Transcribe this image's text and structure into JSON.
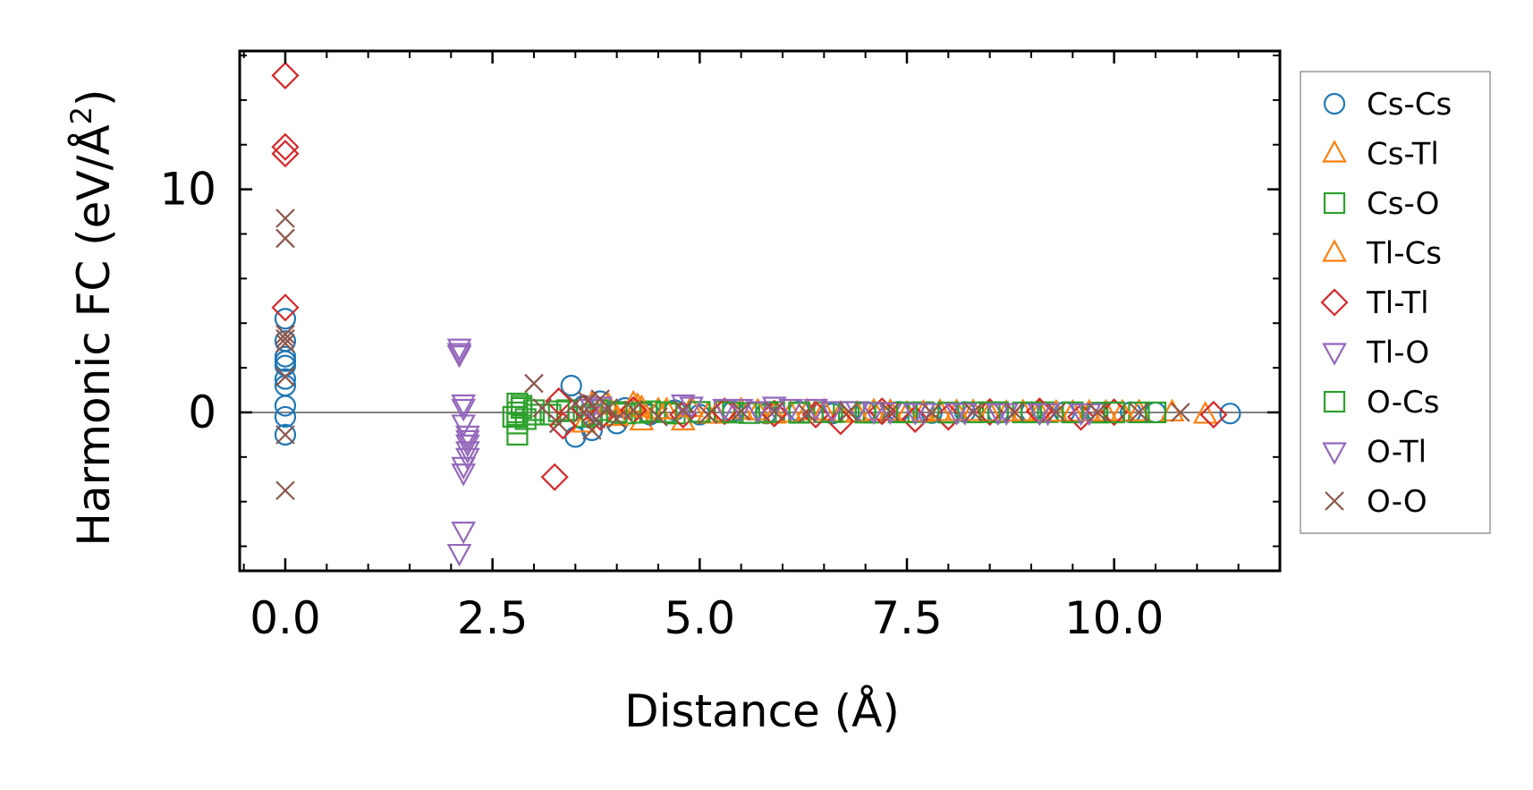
{
  "chart_data": {
    "type": "scatter",
    "title": "",
    "xlabel": "Distance (Å)",
    "ylabel": "Harmonic FC (eV/Å",
    "ylabel_sup": "2",
    "ylabel_tail": ")",
    "xlim": [
      -0.55,
      12.0
    ],
    "ylim": [
      -7.1,
      16.2
    ],
    "x_ticks": [
      0.0,
      2.5,
      5.0,
      7.5,
      10.0
    ],
    "x_tick_labels": [
      "0.0",
      "2.5",
      "5.0",
      "7.5",
      "10.0"
    ],
    "y_ticks": [
      0,
      10
    ],
    "y_tick_labels": [
      "0",
      "10"
    ],
    "x_minor_step": 0.5,
    "y_minor_step": 2,
    "zero_line": true,
    "grid": false,
    "legend_position": "outside-right",
    "series": [
      {
        "name": "Cs-Cs",
        "marker": "circle",
        "color": "#1f77b4",
        "x": [
          0,
          0,
          0,
          0,
          0,
          0,
          0,
          0,
          0,
          0,
          3.45,
          3.5,
          3.6,
          3.7,
          3.8,
          4.0,
          4.1,
          4.4,
          4.7,
          5.0,
          5.4,
          5.8,
          6.2,
          6.6,
          7.0,
          7.4,
          7.8,
          8.2,
          8.6,
          9.0,
          9.4,
          9.8,
          10.2,
          10.5,
          11.4
        ],
        "y": [
          4.2,
          2.5,
          2.3,
          2.1,
          1.5,
          1.2,
          0.3,
          -0.2,
          -1.0,
          3.2,
          1.2,
          -1.1,
          0.3,
          -0.8,
          0.5,
          -0.5,
          0.2,
          -0.1,
          0.1,
          -0.1,
          0.05,
          -0.05,
          0.05,
          -0.05,
          0.02,
          0.03,
          -0.03,
          0.02,
          -0.02,
          0.01,
          0.01,
          0,
          0.01,
          0,
          -0.05
        ]
      },
      {
        "name": "Cs-Tl",
        "marker": "triangle-up",
        "color": "#ff7f0e",
        "x": [
          3.6,
          3.9,
          4.2,
          4.25,
          4.3,
          4.5,
          4.8,
          5.1,
          5.5,
          5.9,
          6.3,
          6.7,
          7.1,
          7.5,
          7.9,
          8.3,
          8.7,
          9.1,
          9.5,
          9.9,
          10.3,
          10.7,
          11.1
        ],
        "y": [
          -0.5,
          0.3,
          0.4,
          0.3,
          -0.4,
          0.1,
          -0.4,
          -0.1,
          0.1,
          -0.1,
          0.05,
          -0.05,
          0.05,
          -0.05,
          0.02,
          0.02,
          -0.02,
          0.01,
          -0.01,
          0,
          0.01,
          0,
          -0.1
        ]
      },
      {
        "name": "Cs-O",
        "marker": "square",
        "color": "#2ca02c",
        "x": [
          2.8,
          2.8,
          2.8,
          2.8,
          2.8,
          2.85,
          2.9,
          3.0,
          3.2,
          3.4,
          3.6,
          3.8,
          4.1,
          4.4,
          4.7,
          5.0,
          5.3,
          5.6,
          5.9,
          6.2,
          6.5,
          6.8,
          7.1,
          7.4,
          7.7,
          8.0,
          8.3,
          8.6,
          8.9,
          9.2,
          9.5,
          9.8,
          10.0,
          10.3
        ],
        "y": [
          0.4,
          0.0,
          -0.2,
          -0.5,
          -1.0,
          0.3,
          -0.3,
          0.1,
          -0.1,
          0.1,
          -0.2,
          0.1,
          -0.05,
          0.05,
          -0.05,
          0.02,
          0.03,
          -0.03,
          0.02,
          -0.02,
          0.01,
          0.02,
          -0.01,
          0,
          0.01,
          -0.01,
          0,
          0.01,
          0,
          0.01,
          0,
          -0.01,
          0,
          0
        ]
      },
      {
        "name": "Tl-Cs",
        "marker": "triangle-up",
        "color": "#ff7f0e",
        "x": [
          3.7,
          4.0,
          4.3,
          4.6,
          4.9,
          5.2,
          5.7,
          6.1,
          6.5,
          6.9,
          7.3,
          7.7,
          8.1,
          8.5,
          8.9,
          9.3,
          9.7,
          10.1
        ],
        "y": [
          0.4,
          -0.2,
          0.2,
          0.1,
          0.2,
          -0.1,
          0.05,
          -0.05,
          0.05,
          -0.05,
          0.03,
          -0.02,
          0.02,
          -0.02,
          0.01,
          -0.01,
          0,
          0
        ]
      },
      {
        "name": "Tl-Tl",
        "marker": "diamond",
        "color": "#d62728",
        "x": [
          0,
          0,
          0,
          0,
          3.25,
          3.3,
          3.35,
          3.6,
          3.8,
          4.2,
          4.8,
          5.3,
          5.9,
          6.4,
          6.7,
          7.2,
          7.6,
          8.0,
          8.5,
          9.1,
          9.6,
          10.0,
          11.2
        ],
        "y": [
          15.1,
          11.9,
          11.6,
          4.7,
          -2.9,
          0.5,
          -0.6,
          0.2,
          -0.2,
          0.1,
          -0.1,
          0.05,
          -0.05,
          -0.1,
          -0.4,
          0.05,
          -0.3,
          -0.2,
          0.02,
          0.05,
          -0.2,
          0.01,
          -0.1
        ]
      },
      {
        "name": "Tl-O",
        "marker": "triangle-down",
        "color": "#9467bd",
        "x": [
          2.1,
          2.1,
          2.15,
          2.15,
          2.2,
          2.2,
          2.2,
          2.15,
          2.1,
          2.15,
          3.8,
          4.8,
          5.5,
          5.9,
          6.4,
          6.9,
          7.3,
          7.7,
          8.2,
          8.7,
          9.2,
          9.7
        ],
        "y": [
          2.9,
          2.6,
          0.2,
          -0.5,
          -1.0,
          -1.4,
          -2.0,
          -2.7,
          -6.3,
          -5.3,
          0.3,
          0.4,
          0.2,
          0.3,
          0.2,
          0.1,
          0.05,
          0.02,
          0.02,
          0.01,
          0,
          0
        ]
      },
      {
        "name": "O-Cs",
        "marker": "square",
        "color": "#2ca02c",
        "x": [
          2.75,
          2.85,
          3.0,
          3.3,
          3.7,
          4.0,
          4.3,
          4.6,
          5.0,
          5.4,
          5.8,
          6.2,
          6.6,
          7.0,
          7.5,
          8.0,
          8.5,
          9.0,
          9.5,
          10.0,
          10.5
        ],
        "y": [
          -0.2,
          0.2,
          -0.1,
          0.05,
          -0.1,
          0.02,
          -0.02,
          0.01,
          0.02,
          -0.01,
          0.01,
          0,
          0.01,
          -0.01,
          0,
          0,
          0.01,
          0,
          0,
          0,
          0
        ]
      },
      {
        "name": "O-Tl",
        "marker": "triangle-down",
        "color": "#9467bd",
        "x": [
          2.1,
          2.15,
          2.2,
          2.2,
          2.15,
          3.7,
          4.9,
          5.3,
          5.7,
          6.1,
          6.6,
          7.1,
          7.6,
          8.1,
          8.6,
          9.1,
          9.6
        ],
        "y": [
          2.7,
          0.4,
          -1.2,
          -1.7,
          -2.4,
          0.2,
          0.3,
          0.2,
          0.1,
          0.2,
          0.1,
          0.05,
          0.02,
          0.02,
          0.01,
          0,
          0
        ]
      },
      {
        "name": "O-O",
        "marker": "x",
        "color": "#8c564b",
        "x": [
          0,
          0,
          0,
          0,
          0,
          0,
          0,
          0,
          3.0,
          3.1,
          3.3,
          3.5,
          3.6,
          3.65,
          3.7,
          3.75,
          3.8,
          3.9,
          4.0,
          4.2,
          4.5,
          4.8,
          5.1,
          5.5,
          5.9,
          6.3,
          6.8,
          7.3,
          7.8,
          8.3,
          8.8,
          9.3,
          9.8,
          10.3,
          10.8
        ],
        "y": [
          8.7,
          7.8,
          3.5,
          3.3,
          3.1,
          1.6,
          -1.0,
          -3.5,
          1.3,
          0.2,
          -0.5,
          0.4,
          0.0,
          0.5,
          -0.8,
          -0.3,
          0.6,
          0.2,
          -0.3,
          0.1,
          -0.2,
          0.1,
          -0.1,
          0.05,
          0.05,
          -0.05,
          0.03,
          0.02,
          -0.02,
          0.01,
          0.01,
          0,
          0,
          0,
          0
        ]
      }
    ]
  }
}
